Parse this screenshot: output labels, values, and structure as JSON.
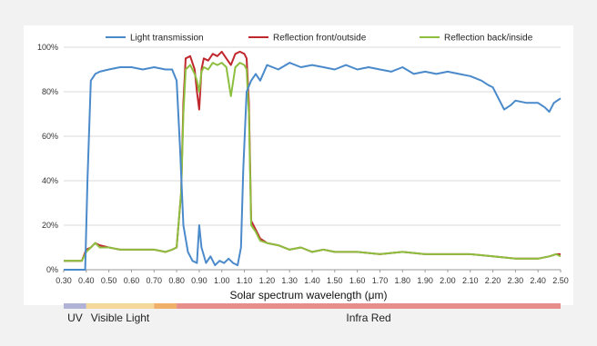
{
  "chart_data": {
    "type": "line",
    "xlabel": "Solar spectrum wavelength (μm)",
    "ylabel": "",
    "xlim": [
      0.3,
      2.5
    ],
    "ylim": [
      0,
      100
    ],
    "x_ticks": [
      "0.30",
      "0.40",
      "0.50",
      "0.60",
      "0.70",
      "0.80",
      "0.90",
      "1.00",
      "1.10",
      "1.20",
      "1.30",
      "1.40",
      "1.50",
      "1.60",
      "1.70",
      "1.80",
      "1.90",
      "2.00",
      "2.10",
      "2.20",
      "2.30",
      "2.40",
      "2.50"
    ],
    "y_ticks": [
      "0%",
      "20%",
      "40%",
      "60%",
      "80%",
      "100%"
    ],
    "grid": "horizontal",
    "legend": "top",
    "series": [
      {
        "name": "Light transmission",
        "color": "#4a8acb",
        "x": [
          0.3,
          0.38,
          0.395,
          0.405,
          0.42,
          0.44,
          0.46,
          0.5,
          0.55,
          0.6,
          0.65,
          0.7,
          0.75,
          0.78,
          0.8,
          0.815,
          0.83,
          0.85,
          0.87,
          0.89,
          0.9,
          0.91,
          0.93,
          0.95,
          0.97,
          0.99,
          1.01,
          1.03,
          1.05,
          1.07,
          1.085,
          1.095,
          1.11,
          1.13,
          1.15,
          1.17,
          1.2,
          1.25,
          1.3,
          1.35,
          1.4,
          1.45,
          1.5,
          1.55,
          1.6,
          1.65,
          1.7,
          1.75,
          1.8,
          1.85,
          1.9,
          1.95,
          2.0,
          2.05,
          2.1,
          2.15,
          2.18,
          2.2,
          2.22,
          2.25,
          2.28,
          2.3,
          2.35,
          2.4,
          2.43,
          2.45,
          2.47,
          2.5
        ],
        "values": [
          0,
          0,
          0,
          40,
          85,
          88,
          89,
          90,
          91,
          91,
          90,
          91,
          90,
          90,
          85,
          55,
          20,
          8,
          4,
          3,
          20,
          10,
          3,
          6,
          2,
          4,
          3,
          5,
          3,
          2,
          10,
          45,
          80,
          85,
          88,
          85,
          92,
          90,
          93,
          91,
          92,
          91,
          90,
          92,
          90,
          91,
          90,
          89,
          91,
          88,
          89,
          88,
          89,
          88,
          87,
          85,
          83,
          82,
          78,
          72,
          74,
          76,
          75,
          75,
          73,
          71,
          75,
          77
        ]
      },
      {
        "name": "Reflection front/outside",
        "color": "#c0282e",
        "x": [
          0.3,
          0.38,
          0.4,
          0.42,
          0.44,
          0.46,
          0.5,
          0.55,
          0.6,
          0.65,
          0.7,
          0.75,
          0.78,
          0.8,
          0.82,
          0.83,
          0.84,
          0.86,
          0.88,
          0.89,
          0.9,
          0.91,
          0.92,
          0.94,
          0.96,
          0.98,
          1.0,
          1.02,
          1.04,
          1.06,
          1.08,
          1.1,
          1.11,
          1.12,
          1.13,
          1.15,
          1.17,
          1.2,
          1.25,
          1.3,
          1.35,
          1.4,
          1.45,
          1.5,
          1.6,
          1.7,
          1.8,
          1.9,
          2.0,
          2.1,
          2.2,
          2.3,
          2.4,
          2.45,
          2.48,
          2.5
        ],
        "values": [
          4,
          4,
          9,
          10,
          12,
          11,
          10,
          9,
          9,
          9,
          9,
          8,
          9,
          10,
          35,
          75,
          95,
          96,
          90,
          80,
          72,
          90,
          95,
          94,
          97,
          96,
          98,
          95,
          92,
          97,
          98,
          97,
          95,
          75,
          22,
          18,
          14,
          12,
          11,
          9,
          10,
          8,
          9,
          8,
          8,
          7,
          8,
          7,
          7,
          7,
          6,
          5,
          5,
          6,
          7,
          7
        ]
      },
      {
        "name": "Reflection back/inside",
        "color": "#8dbf3f",
        "x": [
          0.3,
          0.38,
          0.4,
          0.42,
          0.44,
          0.46,
          0.5,
          0.55,
          0.6,
          0.65,
          0.7,
          0.75,
          0.78,
          0.8,
          0.82,
          0.83,
          0.84,
          0.86,
          0.88,
          0.89,
          0.9,
          0.91,
          0.92,
          0.94,
          0.96,
          0.98,
          1.0,
          1.02,
          1.04,
          1.06,
          1.08,
          1.1,
          1.11,
          1.12,
          1.13,
          1.15,
          1.17,
          1.2,
          1.25,
          1.3,
          1.35,
          1.4,
          1.45,
          1.5,
          1.6,
          1.7,
          1.8,
          1.9,
          2.0,
          2.1,
          2.2,
          2.3,
          2.4,
          2.45,
          2.48,
          2.5
        ],
        "values": [
          4,
          4,
          8,
          10,
          12,
          10,
          10,
          9,
          9,
          9,
          9,
          8,
          9,
          10,
          35,
          70,
          90,
          92,
          88,
          85,
          80,
          89,
          91,
          90,
          93,
          92,
          93,
          91,
          78,
          91,
          93,
          92,
          90,
          70,
          20,
          17,
          13,
          12,
          11,
          9,
          10,
          8,
          9,
          8,
          8,
          7,
          8,
          7,
          7,
          7,
          6,
          5,
          5,
          6,
          7,
          6
        ]
      }
    ],
    "bands": [
      {
        "label": "UV",
        "from": 0.3,
        "to": 0.4,
        "color": "#b0b3d6"
      },
      {
        "label": "Visible Light",
        "from": 0.4,
        "to": 0.7,
        "color": "#f4d99a"
      },
      {
        "label": "",
        "from": 0.7,
        "to": 0.8,
        "color": "#f0b06a"
      },
      {
        "label": "Infra Red",
        "from": 0.8,
        "to": 2.5,
        "color": "#e88e8a"
      }
    ]
  }
}
